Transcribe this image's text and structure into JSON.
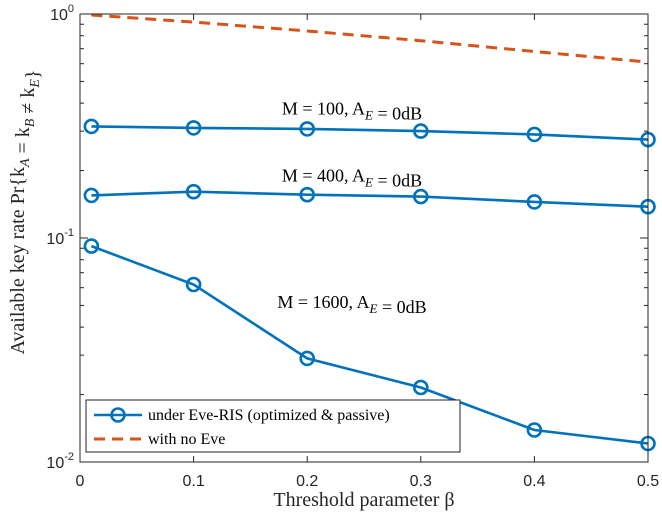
{
  "chart_data": {
    "type": "line",
    "title": "",
    "xlabel": "Threshold parameter β",
    "ylabel": "Available key rate Pr{k_A = k_B ≠ k_E}",
    "x_scale": "linear",
    "y_scale": "log",
    "xlim": [
      0,
      0.5
    ],
    "ylim": [
      0.01,
      1
    ],
    "x_ticks": [
      0,
      0.1,
      0.2,
      0.3,
      0.4,
      0.5
    ],
    "x_tick_labels": [
      "0",
      "0.1",
      "0.2",
      "0.3",
      "0.4",
      "0.5"
    ],
    "y_ticks": [
      0.01,
      0.1,
      1
    ],
    "y_tick_labels": [
      {
        "base": "10",
        "exp": "-2"
      },
      {
        "base": "10",
        "exp": "-1"
      },
      {
        "base": "10",
        "exp": "0"
      }
    ],
    "grid": false,
    "legend_position": "bottom-left",
    "legend": [
      {
        "label": "under Eve-RIS (optimized & passive)",
        "style": "solid-circle",
        "color": "#0072BD"
      },
      {
        "label": "with no Eve",
        "style": "dashed",
        "color": "#D95319"
      }
    ],
    "series": [
      {
        "name": "with no Eve",
        "color": "#D95319",
        "style": "dashed",
        "x": [
          0.01,
          0.1,
          0.2,
          0.3,
          0.4,
          0.5
        ],
        "values": [
          0.99,
          0.92,
          0.84,
          0.76,
          0.68,
          0.61
        ]
      },
      {
        "name": "under Eve-RIS (optimized & passive)",
        "color": "#0072BD",
        "style": "solid-circle",
        "x": [
          0.01,
          0.1,
          0.2,
          0.3,
          0.4,
          0.5
        ],
        "values": [
          0.315,
          0.31,
          0.307,
          0.3,
          0.29,
          0.275
        ]
      },
      {
        "name": "under Eve-RIS (optimized & passive)",
        "color": "#0072BD",
        "style": "solid-circle",
        "x": [
          0.01,
          0.1,
          0.2,
          0.3,
          0.4,
          0.5
        ],
        "values": [
          0.155,
          0.161,
          0.156,
          0.153,
          0.145,
          0.138
        ]
      },
      {
        "name": "under Eve-RIS (optimized & passive)",
        "color": "#0072BD",
        "style": "solid-circle",
        "x": [
          0.01,
          0.1,
          0.2,
          0.3,
          0.4,
          0.5
        ],
        "values": [
          0.092,
          0.062,
          0.029,
          0.0215,
          0.0139,
          0.0121
        ]
      }
    ],
    "annotations": [
      {
        "text": "M = 100, A_E = 0dB"
      },
      {
        "text": "M = 400, A_E = 0dB"
      },
      {
        "text": "M = 1600, A_E = 0dB"
      }
    ]
  }
}
